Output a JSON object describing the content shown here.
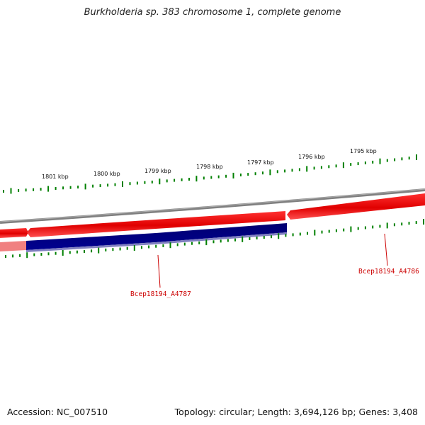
{
  "title": "Burkholderia sp. 383 chromosome 1, complete genome",
  "footer": {
    "accession": "Accession: NC_007510",
    "summary": "Topology: circular; Length: 3,694,126 bp; Genes: 3,408"
  },
  "colors": {
    "backbone": "#808080",
    "forward_gene": "#ff0000",
    "reverse_gene": "#000080",
    "ticks": "#008000",
    "label": "#cc0000"
  },
  "ruler": {
    "labels": [
      "1801 kbp",
      "1800 kbp",
      "1799 kbp",
      "1798 kbp",
      "1797 kbp",
      "1796 kbp",
      "1795 kbp"
    ]
  },
  "genes": [
    {
      "name": "Bcep18194_A4787",
      "strand": "reverse",
      "color": "navy"
    },
    {
      "name": "Bcep18194_A4786",
      "strand": "forward",
      "color": "red"
    }
  ]
}
